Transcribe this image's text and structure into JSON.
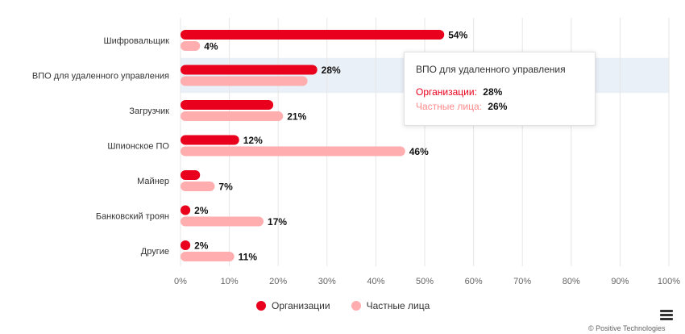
{
  "chart_data": {
    "type": "bar",
    "orientation": "horizontal",
    "categories": [
      "Шифровальщик",
      "ВПО для удаленного управления",
      "Загрузчик",
      "Шпионское ПО",
      "Майнер",
      "Банковский троян",
      "Другие"
    ],
    "series": [
      {
        "name": "Организации",
        "color": "#e8001c",
        "values": [
          54,
          28,
          19,
          12,
          4,
          2,
          2
        ],
        "labels": [
          "54%",
          "28%",
          "",
          "12%",
          "",
          "2%",
          "2%"
        ]
      },
      {
        "name": "Частные лица",
        "color": "#ffadaf",
        "values": [
          4,
          26,
          21,
          46,
          7,
          17,
          11
        ],
        "labels": [
          "4%",
          "",
          "21%",
          "46%",
          "7%",
          "17%",
          "11%"
        ]
      }
    ],
    "xlim": [
      0,
      100
    ],
    "x_ticks": [
      "0%",
      "10%",
      "20%",
      "30%",
      "40%",
      "50%",
      "60%",
      "70%",
      "80%",
      "90%",
      "100%"
    ],
    "grid": "vertical",
    "legend_position": "bottom",
    "highlighted_category": "ВПО для удаленного управления"
  },
  "tooltip": {
    "title": "ВПО для удаленного управления",
    "rows": [
      {
        "label": "Организации:",
        "value": "28%",
        "color": "#e8001c"
      },
      {
        "label": "Частные лица:",
        "value": "26%",
        "color": "#ff8a8c"
      }
    ]
  },
  "legend": {
    "items": [
      {
        "label": "Организации",
        "color": "#e8001c"
      },
      {
        "label": "Частные лица",
        "color": "#ffadaf"
      }
    ]
  },
  "menu_icon": "hamburger-menu-icon",
  "credit": "© Positive Technologies"
}
